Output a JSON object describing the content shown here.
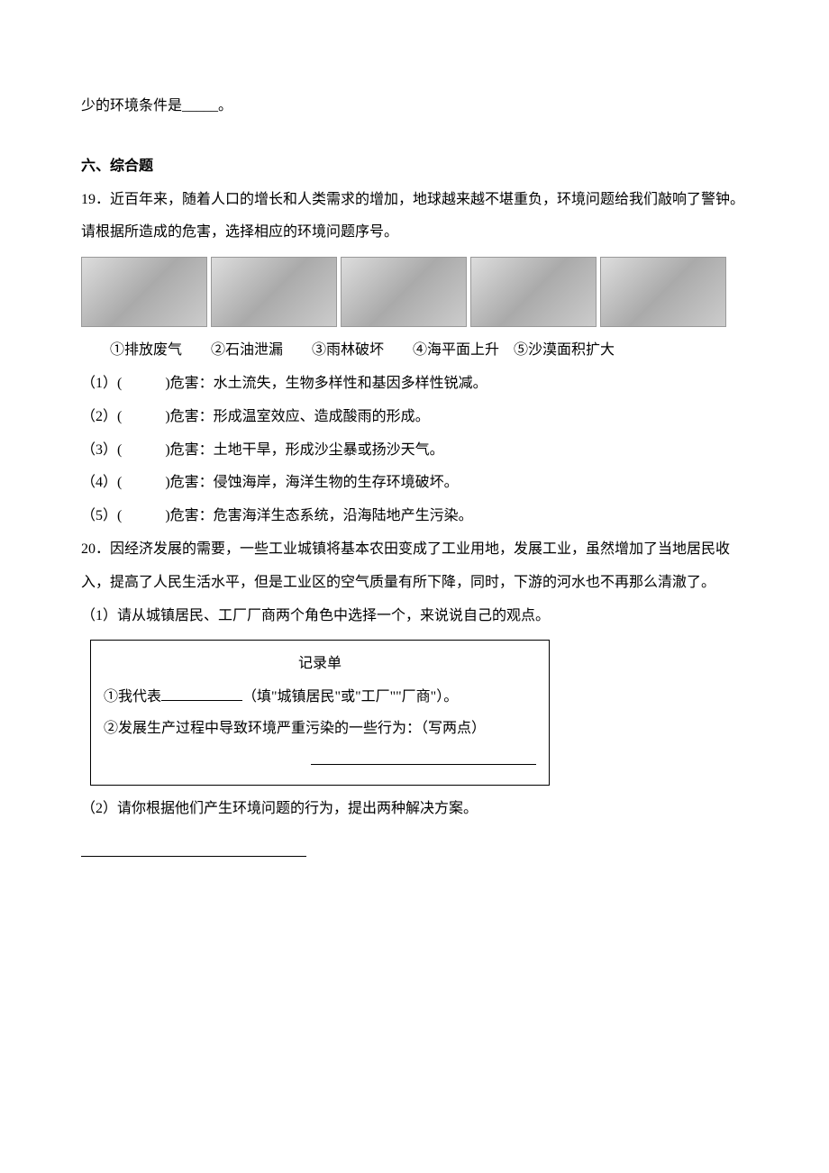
{
  "topLine": "少的环境条件是_____。",
  "sectionHeading": "六、综合题",
  "q19": {
    "intro": "19．近百年来，随着人口的增长和人类需求的增加，地球越来越不堪重负，环境问题给我们敲响了警钟。请根据所造成的危害，选择相应的环境问题序号。",
    "labels": "①排放废气　　②石油泄漏　　③雨林破坏　　④海平面上升　⑤沙漠面积扩大",
    "items": [
      "（1）(　　　)危害：水土流失，生物多样性和基因多样性锐减。",
      "（2）(　　　)危害：形成温室效应、造成酸雨的形成。",
      "（3）(　　　)危害：土地干旱，形成沙尘暴或扬沙天气。",
      "（4）(　　　)危害：侵蚀海岸，海洋生物的生存环境破坏。",
      "（5）(　　　)危害：危害海洋生态系统，沿海陆地产生污染。"
    ]
  },
  "q20": {
    "intro": "20．因经济发展的需要，一些工业城镇将基本农田变成了工业用地，发展工业，虽然增加了当地居民收入，提高了人民生活水平，但是工业区的空气质量有所下降，同时，下游的河水也不再那么清澈了。",
    "sub1": "（1）请从城镇居民、工厂厂商两个角色中选择一个，来说说自己的观点。",
    "record": {
      "title": "记录单",
      "line1_prefix": "①我代表",
      "line1_suffix": "（填\"城镇居民\"或\"工厂\"\"厂商\"）。",
      "line2": "②发展生产过程中导致环境严重污染的一些行为：（写两点）"
    },
    "sub2": "（2）请你根据他们产生环境问题的行为，提出两种解决方案。"
  }
}
